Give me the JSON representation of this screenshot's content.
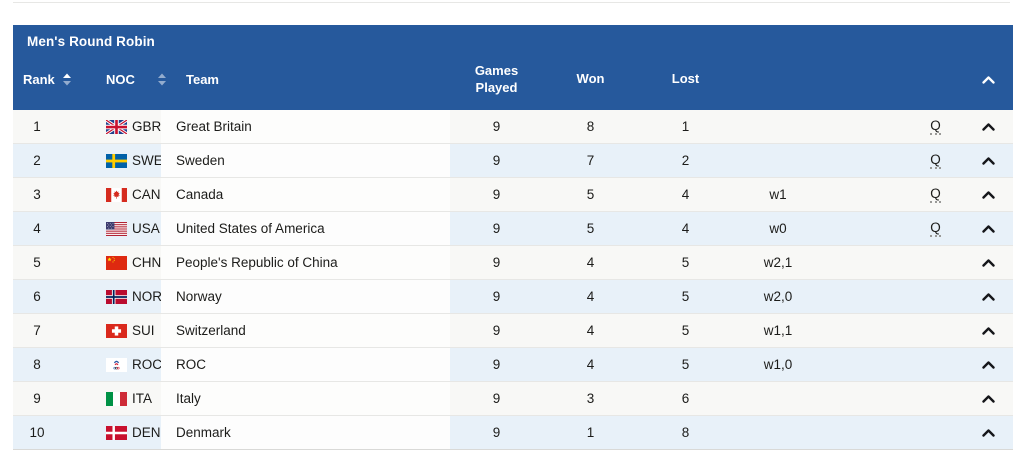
{
  "page": {
    "background": "#ffffff"
  },
  "colors": {
    "header_background": "#26599C",
    "header_text": "#ffffff",
    "row_stripe_blue": "#e8f1f9",
    "row_plain": "#f8f8f6",
    "team_cell": "#fdfdfd",
    "row_border": "#e7e7e5",
    "text": "#1c1c1a",
    "chevron": "#15161a"
  },
  "header": {
    "title": "Men's Round Robin",
    "columns": {
      "rank": "Rank",
      "noc": "NOC",
      "team": "Team",
      "games_played": "Games Played",
      "won": "Won",
      "lost": "Lost"
    },
    "sort_state": {
      "rank": "ascending",
      "noc": "none"
    },
    "icons": {
      "rank_sort": "sort-arrows",
      "noc_sort": "sort-arrows",
      "collapse": "chevron-up",
      "row_expand": "chevron-up"
    }
  },
  "table": {
    "qualified_label": "Q",
    "rows": [
      {
        "rank": "1",
        "noc": "GBR",
        "team": "Great Britain",
        "games_played": "9",
        "won": "8",
        "lost": "1",
        "tiebreak": "",
        "qualified": true
      },
      {
        "rank": "2",
        "noc": "SWE",
        "team": "Sweden",
        "games_played": "9",
        "won": "7",
        "lost": "2",
        "tiebreak": "",
        "qualified": true
      },
      {
        "rank": "3",
        "noc": "CAN",
        "team": "Canada",
        "games_played": "9",
        "won": "5",
        "lost": "4",
        "tiebreak": "w1",
        "qualified": true
      },
      {
        "rank": "4",
        "noc": "USA",
        "team": "United States of America",
        "games_played": "9",
        "won": "5",
        "lost": "4",
        "tiebreak": "w0",
        "qualified": true
      },
      {
        "rank": "5",
        "noc": "CHN",
        "team": "People's Republic of China",
        "games_played": "9",
        "won": "4",
        "lost": "5",
        "tiebreak": "w2,1",
        "qualified": false
      },
      {
        "rank": "6",
        "noc": "NOR",
        "team": "Norway",
        "games_played": "9",
        "won": "4",
        "lost": "5",
        "tiebreak": "w2,0",
        "qualified": false
      },
      {
        "rank": "7",
        "noc": "SUI",
        "team": "Switzerland",
        "games_played": "9",
        "won": "4",
        "lost": "5",
        "tiebreak": "w1,1",
        "qualified": false
      },
      {
        "rank": "8",
        "noc": "ROC",
        "team": "ROC",
        "games_played": "9",
        "won": "4",
        "lost": "5",
        "tiebreak": "w1,0",
        "qualified": false
      },
      {
        "rank": "9",
        "noc": "ITA",
        "team": "Italy",
        "games_played": "9",
        "won": "3",
        "lost": "6",
        "tiebreak": "",
        "qualified": false
      },
      {
        "rank": "10",
        "noc": "DEN",
        "team": "Denmark",
        "games_played": "9",
        "won": "1",
        "lost": "8",
        "tiebreak": "",
        "qualified": false
      }
    ]
  }
}
